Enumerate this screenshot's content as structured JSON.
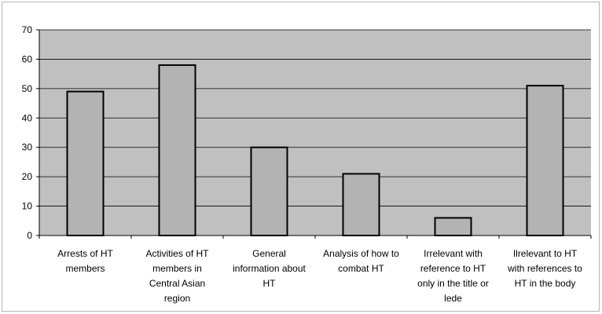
{
  "chart_data": {
    "type": "bar",
    "categories": [
      [
        "Arrests of HT",
        "members"
      ],
      [
        "Activities of HT",
        "members in",
        "Central Asian",
        "region"
      ],
      [
        "General",
        "information about",
        "HT"
      ],
      [
        "Analysis of how to",
        "combat HT"
      ],
      [
        "Irrelevant with",
        "reference to HT",
        "only in the title or",
        "lede"
      ],
      [
        "Ilrelevant to HT",
        "with references to",
        "HT in the body"
      ]
    ],
    "values": [
      49,
      58,
      30,
      21,
      6,
      51
    ],
    "ylim": [
      0,
      70
    ],
    "yticks": [
      "0",
      "10",
      "20",
      "30",
      "40",
      "50",
      "60",
      "70"
    ],
    "grid": true,
    "legend": "none",
    "colors": {
      "plot_bg": "#c0c0c0",
      "bar_fill": "#b3b3b3",
      "bar_stroke": "#000000",
      "grid": "#000000"
    }
  }
}
